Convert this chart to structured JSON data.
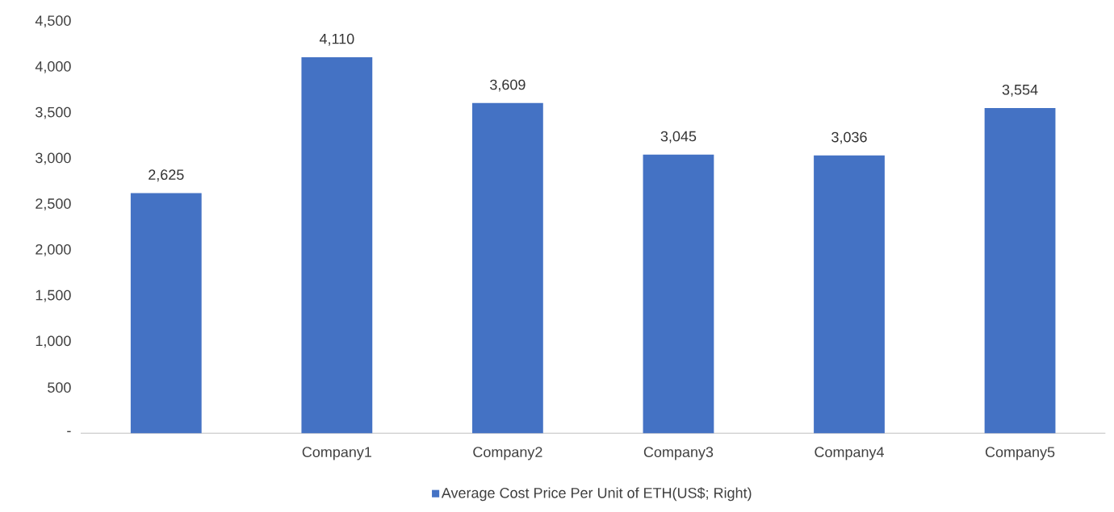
{
  "chart_data": {
    "type": "bar",
    "categories": [
      null,
      "Company1",
      "Company2",
      "Company3",
      "Company4",
      "Company5"
    ],
    "series": [
      {
        "name": "Average Cost Price Per Unit of ETH(US$; Right)",
        "color": "#4472c4",
        "values": [
          2625,
          4110,
          3609,
          3045,
          3036,
          3554
        ],
        "value_labels": [
          "2,625",
          "4,110",
          "3,609",
          "3,045",
          "3,036",
          "3,554"
        ]
      }
    ],
    "ylim": [
      0,
      4500
    ],
    "yticks": [
      {
        "value": 0,
        "label": "-"
      },
      {
        "value": 500,
        "label": "500"
      },
      {
        "value": 1000,
        "label": "1,000"
      },
      {
        "value": 1500,
        "label": "1,500"
      },
      {
        "value": 2000,
        "label": "2,000"
      },
      {
        "value": 2500,
        "label": "2,500"
      },
      {
        "value": 3000,
        "label": "3,000"
      },
      {
        "value": 3500,
        "label": "3,500"
      },
      {
        "value": 4000,
        "label": "4,000"
      },
      {
        "value": 4500,
        "label": "4,500"
      }
    ],
    "legend": "bottom"
  }
}
